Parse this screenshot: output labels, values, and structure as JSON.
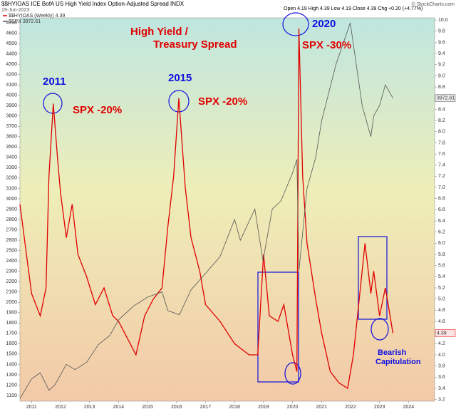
{
  "chart_data": {
    "type": "line",
    "title": "$$HYIOAS ICE BofA US High Yield Index Option-Adjusted Spread INDX",
    "date": "19-Jun-2023",
    "quote": "Open 4.19 High 4.39 Low 4.19 Close 4.39 Chg +0.20 (+4.77%)",
    "credit": "© StockCharts.com",
    "annotations": [
      "High Yield /",
      "Treasury Spread",
      "2011",
      "SPX -20%",
      "2015",
      "SPX -20%",
      "2020",
      "SPX -30%",
      "Bearish",
      "Capitulation"
    ],
    "xlim": [
      2010.6,
      2024.9
    ],
    "xticks": [
      2011,
      2012,
      2013,
      2014,
      2015,
      2016,
      2017,
      2018,
      2019,
      2020,
      2021,
      2022,
      2023,
      2024
    ],
    "ylim": [
      1045,
      4748
    ],
    "yticks": [
      1100,
      1200,
      1300,
      1400,
      1500,
      1600,
      1700,
      1800,
      1900,
      2000,
      2100,
      2200,
      2300,
      2400,
      2500,
      2600,
      2700,
      2800,
      2900,
      3000,
      3100,
      3200,
      3300,
      3400,
      3500,
      3600,
      3700,
      3800,
      3900,
      4000,
      4100,
      4200,
      4300,
      4400,
      4500,
      4600,
      4700
    ],
    "y2lim": [
      3.17,
      10.04
    ],
    "y2ticks": [
      3.2,
      3.4,
      3.6,
      3.8,
      {
        "value": 4,
        "label": "4.0"
      },
      4.2,
      4.4,
      4.6,
      4.8,
      {
        "value": 5,
        "label": "5.0"
      },
      5.2,
      5.4,
      5.6,
      5.8,
      {
        "value": 6,
        "label": "6.0"
      },
      6.2,
      6.4,
      6.6,
      6.8,
      {
        "value": 7,
        "label": "7.0"
      },
      7.2,
      7.4,
      7.6,
      7.8,
      {
        "value": 8,
        "label": "8.0"
      },
      8.2,
      8.4,
      8.6,
      8.8,
      {
        "value": 9,
        "label": "9.0"
      },
      9.2,
      9.4,
      9.6,
      9.8,
      {
        "value": 10,
        "label": "10.0"
      }
    ],
    "series": [
      {
        "name": "$$HYIOAS (Weekly) 4.39",
        "color": "#e00000",
        "axis": "y2",
        "x": [
          2010.6,
          2010.8,
          2011.0,
          2011.3,
          2011.5,
          2011.6,
          2011.75,
          2011.9,
          2012.0,
          2012.2,
          2012.4,
          2012.6,
          2012.9,
          2013.2,
          2013.5,
          2013.8,
          2014.0,
          2014.4,
          2014.6,
          2014.9,
          2015.2,
          2015.5,
          2015.7,
          2015.9,
          2016.08,
          2016.3,
          2016.5,
          2016.8,
          2017.0,
          2017.5,
          2018.0,
          2018.5,
          2018.8,
          2019.0,
          2019.2,
          2019.5,
          2019.7,
          2020.0,
          2020.15,
          2020.22,
          2020.35,
          2020.5,
          2020.8,
          2021.0,
          2021.3,
          2021.6,
          2021.9,
          2022.1,
          2022.3,
          2022.5,
          2022.7,
          2022.8,
          2023.0,
          2023.2,
          2023.3,
          2023.46
        ],
        "values": [
          6.7,
          5.9,
          5.1,
          4.7,
          5.2,
          7.2,
          8.5,
          7.5,
          6.9,
          6.1,
          6.7,
          5.8,
          5.4,
          4.9,
          5.2,
          4.7,
          4.6,
          4.2,
          4.0,
          4.7,
          5.0,
          5.2,
          6.3,
          7.2,
          8.6,
          7.0,
          6.1,
          5.5,
          4.9,
          4.6,
          4.2,
          4.0,
          4.0,
          5.8,
          4.7,
          4.6,
          4.9,
          4.0,
          3.7,
          9.85,
          7.2,
          6.0,
          5.0,
          4.4,
          3.7,
          3.5,
          3.4,
          4.0,
          5.0,
          6.0,
          5.1,
          5.5,
          4.7,
          5.2,
          4.9,
          4.39
        ]
      },
      {
        "name": "$SPX 3972.61",
        "color": "#555555",
        "x": [
          2010.6,
          2011.0,
          2011.3,
          2011.6,
          2011.8,
          2012.2,
          2012.5,
          2012.9,
          2013.3,
          2013.7,
          2014.0,
          2014.5,
          2015.0,
          2015.5,
          2015.7,
          2016.1,
          2016.5,
          2017.0,
          2017.5,
          2018.0,
          2018.2,
          2018.7,
          2018.98,
          2019.3,
          2019.6,
          2020.0,
          2020.15,
          2020.22,
          2020.5,
          2020.8,
          2021.0,
          2021.5,
          2021.99,
          2022.4,
          2022.7,
          2022.8,
          2023.0,
          2023.2,
          2023.46
        ],
        "values": [
          1070,
          1260,
          1320,
          1150,
          1200,
          1400,
          1350,
          1420,
          1590,
          1680,
          1830,
          1960,
          2050,
          2100,
          1920,
          1880,
          2120,
          2280,
          2440,
          2800,
          2600,
          2900,
          2400,
          2900,
          2980,
          3250,
          3380,
          2300,
          3100,
          3400,
          3750,
          4300,
          4700,
          3900,
          3600,
          3800,
          3900,
          4100,
          3972.61
        ]
      }
    ]
  }
}
